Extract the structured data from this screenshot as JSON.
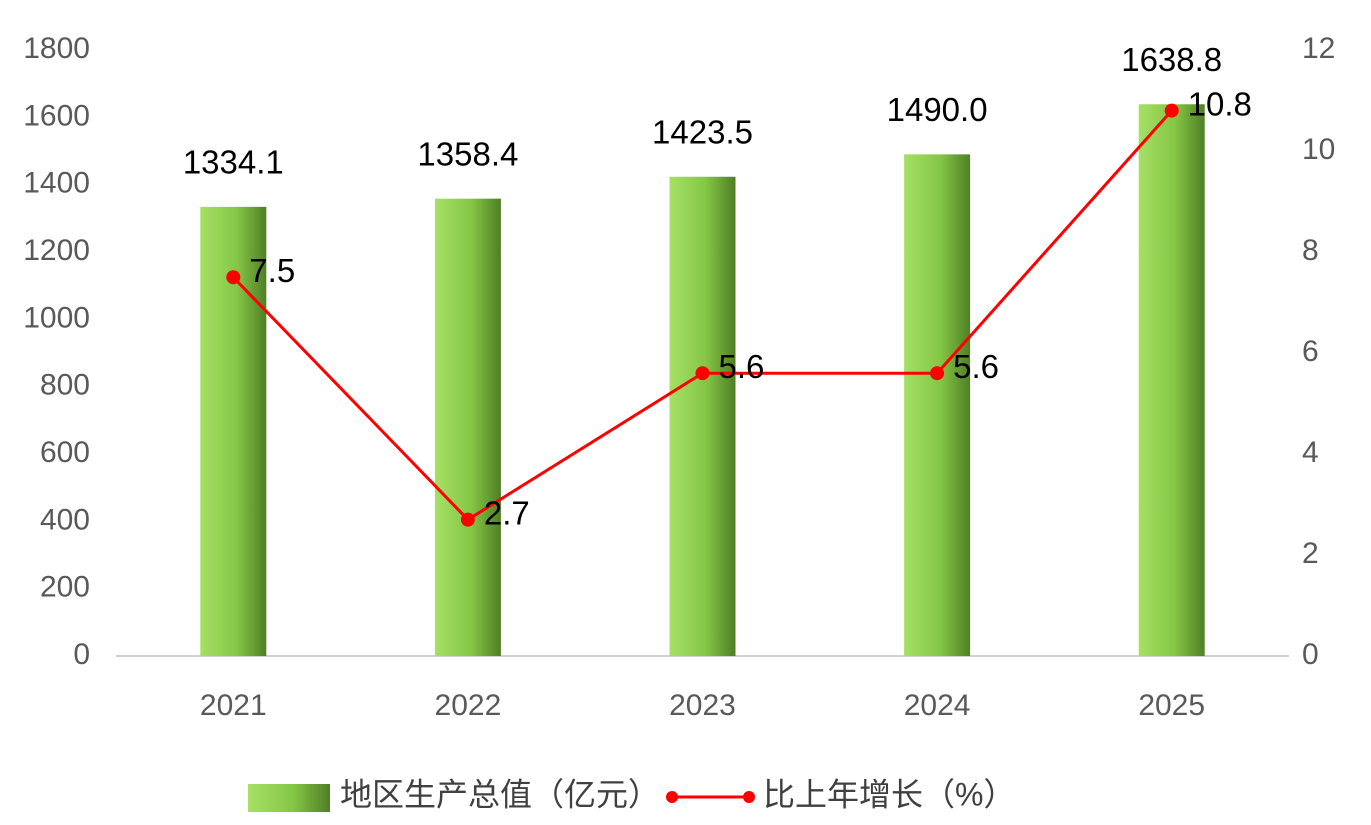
{
  "chart_data": {
    "type": "bar",
    "categories": [
      "2021",
      "2022",
      "2023",
      "2024",
      "2025"
    ],
    "series": [
      {
        "name": "地区生产总值（亿元）",
        "type": "bar",
        "color": "#92d050",
        "values": [
          1334.1,
          1358.4,
          1423.5,
          1490.0,
          1638.8
        ],
        "value_labels": [
          "1334.1",
          "1358.4",
          "1423.5",
          "1490.0",
          "1638.8"
        ]
      },
      {
        "name": "比上年增长（%）",
        "type": "line",
        "axis": "y2",
        "color": "#ff0000",
        "values": [
          7.5,
          2.7,
          5.6,
          5.6,
          10.8
        ]
      }
    ],
    "ylim": [
      0,
      1800
    ],
    "yticks": [
      0,
      200,
      400,
      600,
      800,
      1000,
      1200,
      1400,
      1600,
      1800
    ],
    "y2lim": [
      0,
      12
    ],
    "y2ticks": [
      0,
      2,
      4,
      6,
      8,
      10,
      12
    ],
    "legend": "bottom"
  }
}
